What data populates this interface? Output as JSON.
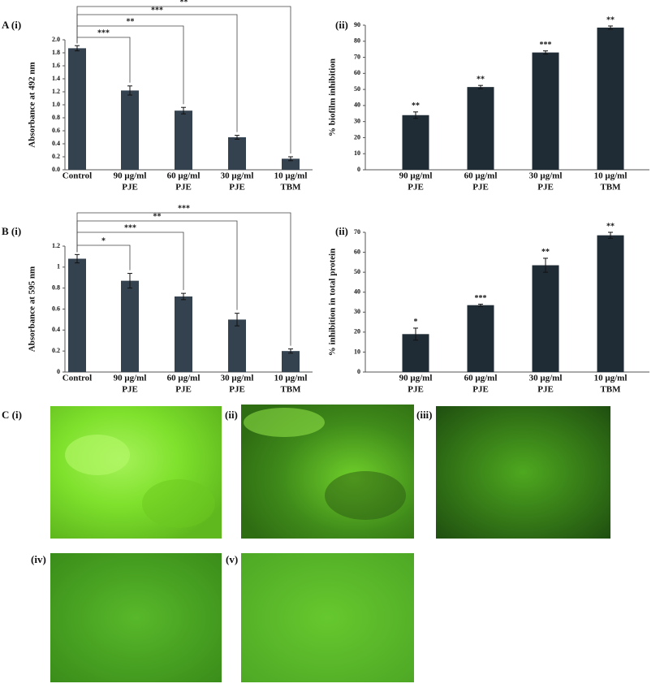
{
  "chart_data": [
    {
      "type": "bar",
      "panel_label": "A (i)",
      "y_label": "Absorbance at 492 nm",
      "categories": [
        [
          "Control"
        ],
        [
          "90 μg/ml",
          "PJE"
        ],
        [
          "60 μg/ml",
          "PJE"
        ],
        [
          "30 μg/ml",
          "PJE"
        ],
        [
          "10 μg/ml",
          "TBM"
        ]
      ],
      "values": [
        1.87,
        1.22,
        0.91,
        0.5,
        0.17
      ],
      "errors": [
        0.04,
        0.07,
        0.05,
        0.03,
        0.03
      ],
      "significance": [
        null,
        "***",
        "**",
        "***",
        "**"
      ],
      "color": "#34424f",
      "ylim": [
        0,
        2.0
      ],
      "yticks": [
        {
          "value": 0,
          "label": "0.0"
        },
        0.2,
        0.4,
        0.6,
        0.8,
        {
          "value": 1,
          "label": "1.0"
        },
        1.2,
        1.4,
        1.6,
        1.8,
        {
          "value": 2,
          "label": "2.0"
        }
      ]
    },
    {
      "type": "bar",
      "panel_label": "(ii)",
      "y_label": "% biofilm inhibition",
      "categories": [
        [
          "90 μg/ml",
          "PJE"
        ],
        [
          "60 μg/ml",
          "PJE"
        ],
        [
          "30 μg/ml",
          "PJE"
        ],
        [
          "10 μg/ml",
          "TBM"
        ]
      ],
      "values": [
        34,
        51.5,
        73,
        88.5
      ],
      "errors": [
        2,
        1,
        1,
        1
      ],
      "value_labels": [
        "**",
        "**",
        "***",
        "**"
      ],
      "color": "#1f2b35",
      "ylim": [
        0,
        90
      ],
      "yticks": [
        0,
        10,
        20,
        30,
        40,
        50,
        60,
        70,
        80,
        90
      ]
    },
    {
      "type": "bar",
      "panel_label": "B (i)",
      "y_label": "Absorbance at 595 nm",
      "categories": [
        [
          "Control"
        ],
        [
          "90 μg/ml",
          "PJE"
        ],
        [
          "60 μg/ml",
          "PJE"
        ],
        [
          "30 μg/ml",
          "PJE"
        ],
        [
          "10 μg/ml",
          "TBM"
        ]
      ],
      "values": [
        1.08,
        0.87,
        0.72,
        0.5,
        0.2
      ],
      "errors": [
        0.04,
        0.07,
        0.03,
        0.06,
        0.02
      ],
      "significance": [
        null,
        "*",
        "***",
        "**",
        "***"
      ],
      "color": "#34424f",
      "ylim": [
        0,
        1.2
      ],
      "yticks": [
        0,
        0.2,
        0.4,
        0.6,
        0.8,
        1,
        1.2
      ]
    },
    {
      "type": "bar",
      "panel_label": "(ii)",
      "y_label": "% inhibition in total protein",
      "categories": [
        [
          "90 μg/ml",
          "PJE"
        ],
        [
          "60 μg/ml",
          "PJE"
        ],
        [
          "30 μg/ml",
          "PJE"
        ],
        [
          "10 μg/ml",
          "TBM"
        ]
      ],
      "values": [
        19,
        33.5,
        53.5,
        68.5
      ],
      "errors": [
        3,
        0.5,
        3.5,
        1.5
      ],
      "value_labels": [
        "*",
        "***",
        "**",
        "**"
      ],
      "color": "#1f2b35",
      "ylim": [
        0,
        70
      ],
      "yticks": [
        0,
        10,
        20,
        30,
        40,
        50,
        60,
        70
      ]
    }
  ],
  "micrographs": {
    "labels": [
      "C (i)",
      "(ii)",
      "(iii)",
      "(iv)",
      "(v)"
    ]
  }
}
